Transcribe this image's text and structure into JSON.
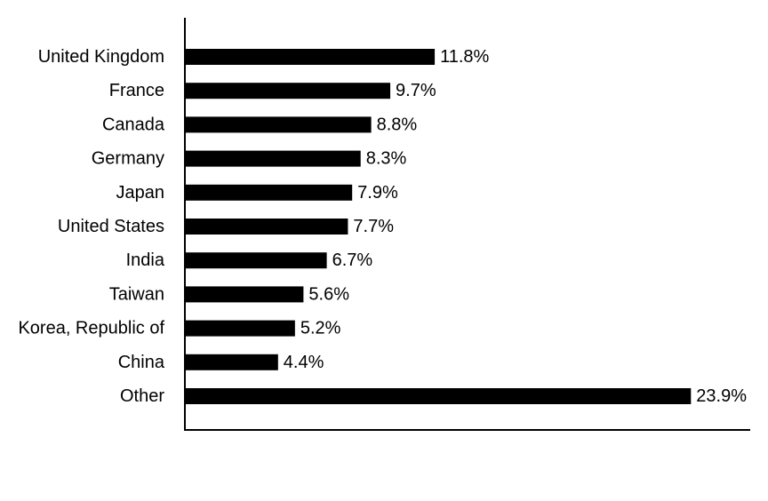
{
  "chart_data": {
    "type": "bar",
    "orientation": "horizontal",
    "categories": [
      "United Kingdom",
      "France",
      "Canada",
      "Germany",
      "Japan",
      "United States",
      "India",
      "Taiwan",
      "Korea, Republic of",
      "China",
      "Other"
    ],
    "values": [
      11.8,
      9.7,
      8.8,
      8.3,
      7.9,
      7.7,
      6.7,
      5.6,
      5.2,
      4.4,
      23.9
    ],
    "value_labels": [
      "11.8%",
      "9.7%",
      "8.8%",
      "8.3%",
      "7.9%",
      "7.7%",
      "6.7%",
      "5.6%",
      "5.2%",
      "4.4%",
      "23.9%"
    ],
    "title": "",
    "xlabel": "",
    "ylabel": "",
    "xlim": [
      0,
      26.7
    ],
    "grid": false,
    "legend": "none",
    "bar_color": "#000000"
  }
}
